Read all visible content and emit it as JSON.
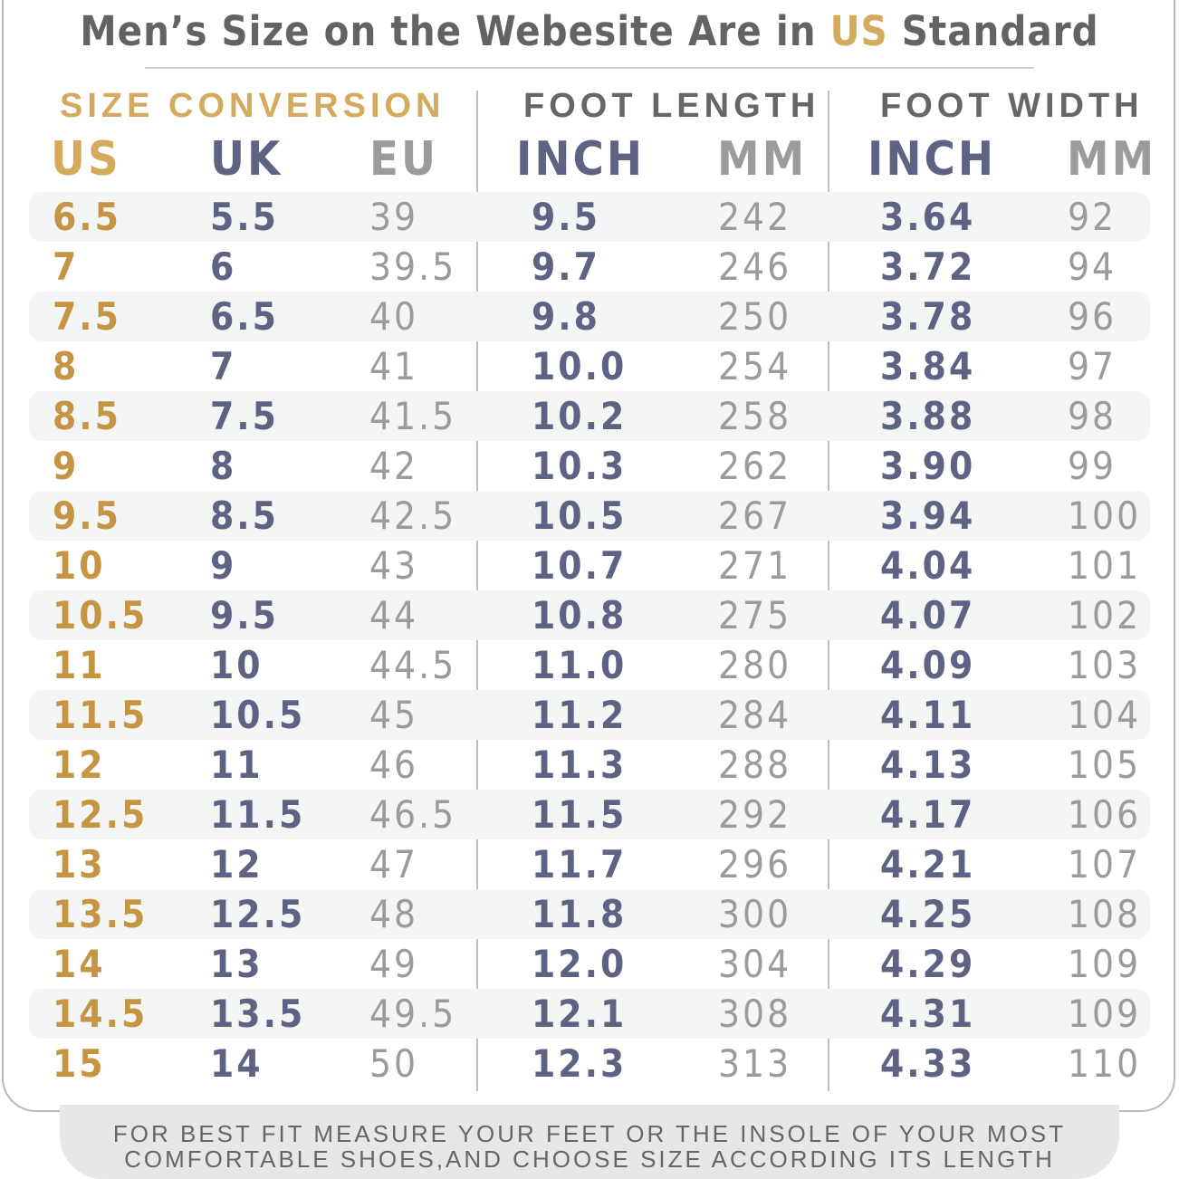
{
  "heading": {
    "before": "Men’s Size on the Webesite Are in ",
    "highlight": "US",
    "after": " Standard"
  },
  "groups": {
    "size_conversion": "SIZE CONVERSION",
    "foot_length": "FOOT LENGTH",
    "foot_width": "FOOT WIDTH"
  },
  "columns": {
    "us": "US",
    "uk": "UK",
    "eu": "EU",
    "length_inch": "INCH",
    "length_mm": "MM",
    "width_inch": "INCH",
    "width_mm": "MM"
  },
  "rows": [
    {
      "us": "6.5",
      "uk": "5.5",
      "eu": "39",
      "length_inch": "9.5",
      "length_mm": "242",
      "width_inch": "3.64",
      "width_mm": "92"
    },
    {
      "us": "7",
      "uk": "6",
      "eu": "39.5",
      "length_inch": "9.7",
      "length_mm": "246",
      "width_inch": "3.72",
      "width_mm": "94"
    },
    {
      "us": "7.5",
      "uk": "6.5",
      "eu": "40",
      "length_inch": "9.8",
      "length_mm": "250",
      "width_inch": "3.78",
      "width_mm": "96"
    },
    {
      "us": "8",
      "uk": "7",
      "eu": "41",
      "length_inch": "10.0",
      "length_mm": "254",
      "width_inch": "3.84",
      "width_mm": "97"
    },
    {
      "us": "8.5",
      "uk": "7.5",
      "eu": "41.5",
      "length_inch": "10.2",
      "length_mm": "258",
      "width_inch": "3.88",
      "width_mm": "98"
    },
    {
      "us": "9",
      "uk": "8",
      "eu": "42",
      "length_inch": "10.3",
      "length_mm": "262",
      "width_inch": "3.90",
      "width_mm": "99"
    },
    {
      "us": "9.5",
      "uk": "8.5",
      "eu": "42.5",
      "length_inch": "10.5",
      "length_mm": "267",
      "width_inch": "3.94",
      "width_mm": "100"
    },
    {
      "us": "10",
      "uk": "9",
      "eu": "43",
      "length_inch": "10.7",
      "length_mm": "271",
      "width_inch": "4.04",
      "width_mm": "101"
    },
    {
      "us": "10.5",
      "uk": "9.5",
      "eu": "44",
      "length_inch": "10.8",
      "length_mm": "275",
      "width_inch": "4.07",
      "width_mm": "102"
    },
    {
      "us": "11",
      "uk": "10",
      "eu": "44.5",
      "length_inch": "11.0",
      "length_mm": "280",
      "width_inch": "4.09",
      "width_mm": "103"
    },
    {
      "us": "11.5",
      "uk": "10.5",
      "eu": "45",
      "length_inch": "11.2",
      "length_mm": "284",
      "width_inch": "4.11",
      "width_mm": "104"
    },
    {
      "us": "12",
      "uk": "11",
      "eu": "46",
      "length_inch": "11.3",
      "length_mm": "288",
      "width_inch": "4.13",
      "width_mm": "105"
    },
    {
      "us": "12.5",
      "uk": "11.5",
      "eu": "46.5",
      "length_inch": "11.5",
      "length_mm": "292",
      "width_inch": "4.17",
      "width_mm": "106"
    },
    {
      "us": "13",
      "uk": "12",
      "eu": "47",
      "length_inch": "11.7",
      "length_mm": "296",
      "width_inch": "4.21",
      "width_mm": "107"
    },
    {
      "us": "13.5",
      "uk": "12.5",
      "eu": "48",
      "length_inch": "11.8",
      "length_mm": "300",
      "width_inch": "4.25",
      "width_mm": "108"
    },
    {
      "us": "14",
      "uk": "13",
      "eu": "49",
      "length_inch": "12.0",
      "length_mm": "304",
      "width_inch": "4.29",
      "width_mm": "109"
    },
    {
      "us": "14.5",
      "uk": "13.5",
      "eu": "49.5",
      "length_inch": "12.1",
      "length_mm": "308",
      "width_inch": "4.31",
      "width_mm": "109"
    },
    {
      "us": "15",
      "uk": "14",
      "eu": "50",
      "length_inch": "12.3",
      "length_mm": "313",
      "width_inch": "4.33",
      "width_mm": "110"
    }
  ],
  "footer": {
    "line1": "FOR BEST FIT MEASURE YOUR FEET OR THE INSOLE OF YOUR MOST",
    "line2": "COMFORTABLE SHOES,AND CHOOSE SIZE ACCORDING ITS LENGTH"
  },
  "colors": {
    "accent_gold": "#c69543",
    "header_gold": "#d4aa5c",
    "slate": "#5e6384",
    "muted_gray": "#9b9b9b",
    "row_shade": "#f4f5f5"
  }
}
